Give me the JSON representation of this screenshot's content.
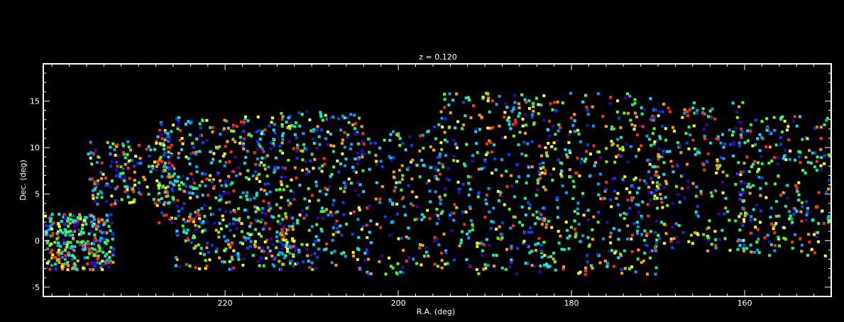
{
  "chart_data": {
    "type": "scatter",
    "title": "z = 0.120",
    "xlabel": "R.A. (deg)",
    "ylabel": "Dec. (deg)",
    "xlim": [
      241,
      150
    ],
    "ylim": [
      -6,
      19
    ],
    "xticks": [
      220,
      200,
      180,
      160
    ],
    "yticks": [
      -5,
      0,
      5,
      10,
      15
    ],
    "grid": false,
    "legend": "none",
    "colors": {
      "background": "#000000",
      "axes": "#ffffff",
      "marker_palette": [
        "#3a00b0",
        "#0040ff",
        "#00a0ff",
        "#00e0ff",
        "#00ff80",
        "#60ff00",
        "#ffff00",
        "#ffa000",
        "#ff3000"
      ]
    },
    "sample_points": [
      {
        "x": 236.5,
        "y": 1.0
      },
      {
        "x": 234.0,
        "y": -1.5
      },
      {
        "x": 220.0,
        "y": 13.0
      },
      {
        "x": 213.0,
        "y": 6.0
      },
      {
        "x": 201.0,
        "y": 9.0
      },
      {
        "x": 190.0,
        "y": 16.0
      },
      {
        "x": 183.0,
        "y": -2.5
      },
      {
        "x": 170.0,
        "y": 14.0
      },
      {
        "x": 156.0,
        "y": 10.5
      },
      {
        "x": 151.0,
        "y": 2.0
      }
    ],
    "density_regions": [
      {
        "x": [
          241,
          233
        ],
        "y": [
          -3,
          3
        ],
        "n": 320
      },
      {
        "x": [
          236,
          226
        ],
        "y": [
          4,
          11
        ],
        "n": 180
      },
      {
        "x": [
          228,
          214
        ],
        "y": [
          2,
          13.5
        ],
        "n": 380
      },
      {
        "x": [
          226,
          212
        ],
        "y": [
          -3,
          2
        ],
        "n": 170
      },
      {
        "x": [
          214,
          204
        ],
        "y": [
          -3,
          14
        ],
        "n": 310
      },
      {
        "x": [
          204,
          195
        ],
        "y": [
          -3.5,
          12
        ],
        "n": 160
      },
      {
        "x": [
          196,
          183
        ],
        "y": [
          -3.5,
          16
        ],
        "n": 340
      },
      {
        "x": [
          184,
          170
        ],
        "y": [
          -3.5,
          16
        ],
        "n": 380
      },
      {
        "x": [
          171,
          160
        ],
        "y": [
          -1,
          15
        ],
        "n": 230
      },
      {
        "x": [
          161,
          150
        ],
        "y": [
          -1.5,
          13.5
        ],
        "n": 260
      }
    ]
  }
}
